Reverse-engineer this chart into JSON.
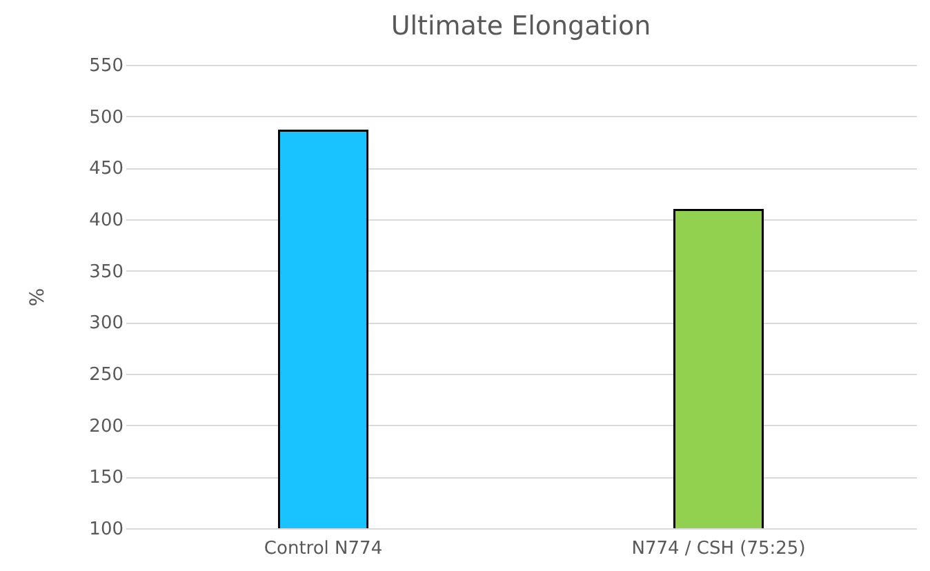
{
  "chart_data": {
    "type": "bar",
    "title": "Ultimate Elongation",
    "ylabel": "%",
    "categories": [
      "Control N774",
      "N774 / CSH (75:25)"
    ],
    "values": [
      486,
      409
    ],
    "colors": [
      "#19c3ff",
      "#92d050"
    ],
    "ylim": [
      100,
      550
    ],
    "yticks": [
      100,
      150,
      200,
      250,
      300,
      350,
      400,
      450,
      500,
      550
    ],
    "grid": "y"
  }
}
